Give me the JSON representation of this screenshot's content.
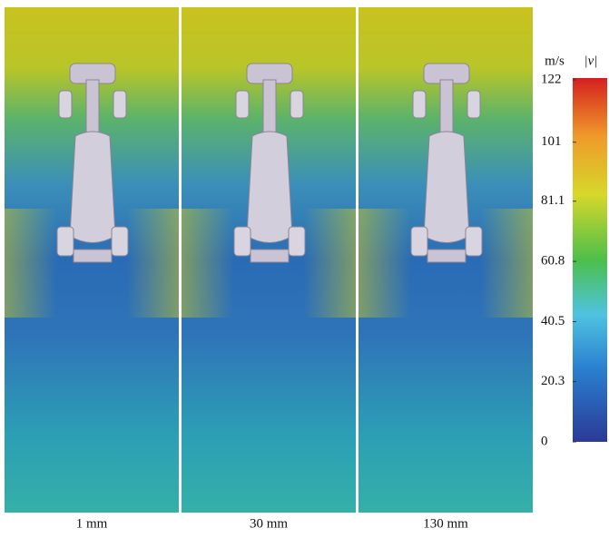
{
  "panels": [
    {
      "label": "1 mm"
    },
    {
      "label": "30 mm"
    },
    {
      "label": "130 mm"
    }
  ],
  "colorbar": {
    "unit": "m/s",
    "title": "|v|",
    "lim": [
      0,
      122
    ],
    "ticks": [
      0,
      20.3,
      40.5,
      60.8,
      81.1,
      101,
      122
    ]
  }
}
